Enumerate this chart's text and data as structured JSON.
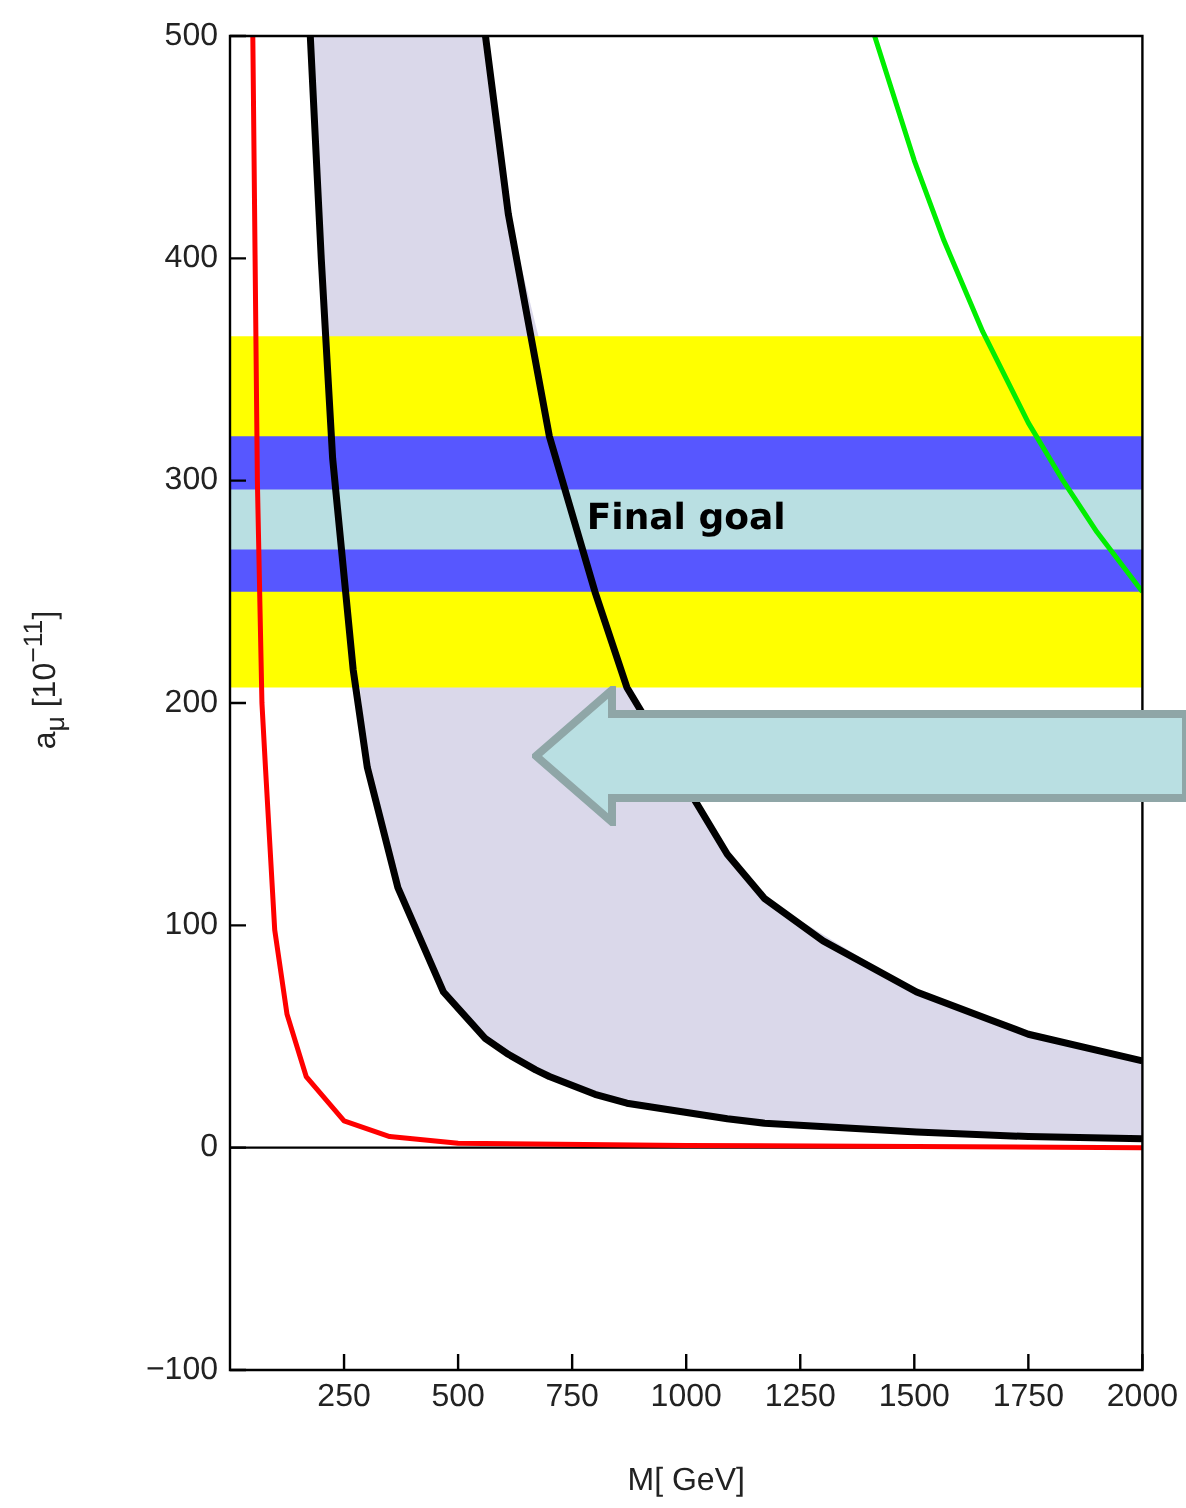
{
  "chart_data": {
    "type": "line",
    "xlabel": "M[ GeV]",
    "ylabel": "a$_{μ}$ [10$^{−11}$]",
    "xlim": [
      0,
      2000
    ],
    "xticks": [
      250,
      500,
      750,
      1000,
      1250,
      1500,
      1750,
      2000
    ],
    "ylim": [
      -100,
      500
    ],
    "yticks": [
      -100,
      0,
      100,
      200,
      300,
      400,
      500
    ],
    "grid": false,
    "legend": false,
    "marker": "none",
    "line_style": "solid",
    "series": [
      {
        "type": "line",
        "color": "#ff0000",
        "x": [
          50,
          55,
          60,
          70,
          78,
          98,
          125,
          167,
          250,
          350,
          500,
          1000,
          2000
        ],
        "values": [
          500,
          400,
          300,
          200,
          170,
          98,
          60,
          32,
          12,
          5,
          2,
          1,
          0
        ]
      },
      {
        "type": "line",
        "color": "#000000",
        "x": [
          176,
          200,
          225,
          270,
          301,
          368,
          468,
          560,
          610,
          670,
          700,
          800,
          870,
          1090,
          1172,
          1505,
          1750,
          2000
        ],
        "values": [
          500,
          400,
          310,
          215,
          171,
          117,
          70,
          49,
          42,
          35,
          32,
          24,
          20,
          13,
          11,
          7,
          5,
          4
        ],
        "lower": [
          500,
          400,
          null,
          null,
          171,
          117,
          70,
          49,
          42,
          35,
          null,
          null,
          20,
          13,
          11,
          7,
          5,
          4
        ],
        "upper": [
          500,
          500,
          null,
          null,
          500,
          500,
          500,
          500,
          420,
          370,
          null,
          null,
          207,
          132,
          112,
          70,
          51,
          39
        ]
      },
      {
        "type": "line",
        "color": "#000000",
        "x": [
          560,
          610,
          700,
          800,
          870,
          1090,
          1172,
          1300,
          1505,
          1750,
          2000
        ],
        "values": [
          500,
          420,
          320,
          250,
          207,
          132,
          112,
          93,
          70,
          51,
          39
        ]
      },
      {
        "type": "line",
        "color": "#00ee00",
        "x": [
          1413,
          1500,
          1565,
          1650,
          1750,
          1826,
          1900,
          2000
        ],
        "values": [
          500,
          444,
          408,
          367,
          326,
          300,
          277,
          250
        ]
      }
    ],
    "bands": [
      {
        "axis": "y",
        "from": 207,
        "to": 365,
        "color": "#ffff00"
      },
      {
        "axis": "y",
        "from": 250,
        "to": 320,
        "color": "#5757ff"
      },
      {
        "axis": "y",
        "from": 269,
        "to": 296,
        "color": "#b9dfe2",
        "label": "Final goal"
      }
    ],
    "ref_lines": [
      {
        "axis": "y",
        "value": 0,
        "color": "#000000"
      }
    ]
  }
}
